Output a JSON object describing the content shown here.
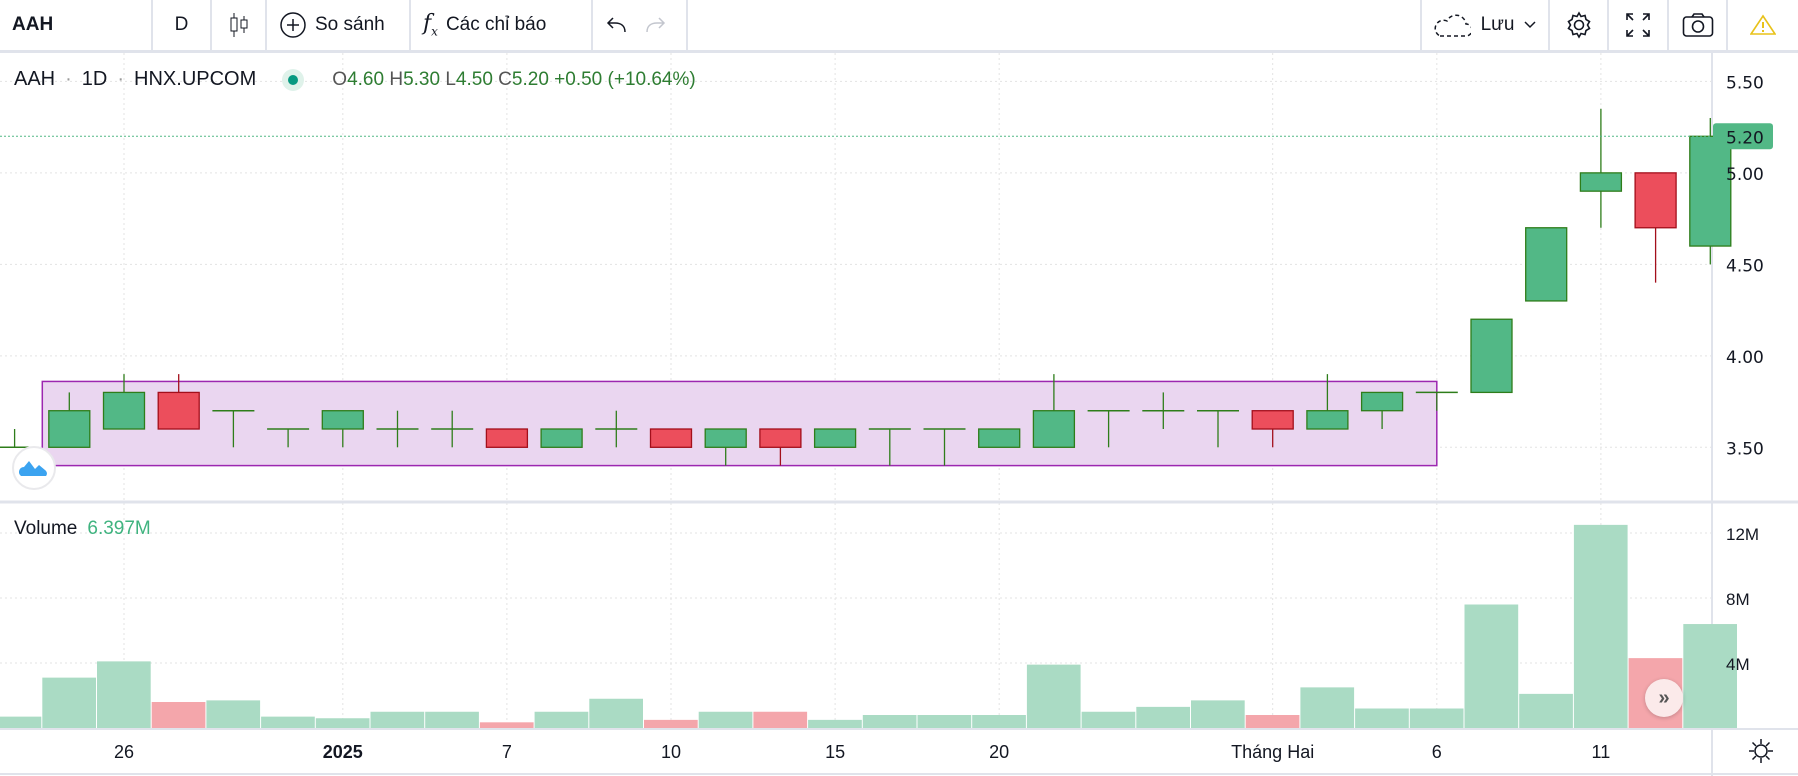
{
  "toolbar": {
    "symbol": "AAH",
    "interval": "D",
    "compare": "So sánh",
    "indicators": "Các chỉ báo",
    "save": "Lưu"
  },
  "legend": {
    "symbol": "AAH",
    "interval": "1D",
    "exchange": "HNX.UPCOM",
    "o_label": "O",
    "o": "4.60",
    "h_label": "H",
    "h": "5.30",
    "l_label": "L",
    "l": "4.50",
    "c_label": "C",
    "c": "5.20",
    "change": "+0.50 (+10.64%)"
  },
  "volume_legend": {
    "label": "Volume",
    "value": "6.397M"
  },
  "colors": {
    "up": "#52b886",
    "up_border": "#2e7d1a",
    "down": "#ec4e5c",
    "down_border": "#a30f1b",
    "vol_up": "#aadbc4",
    "vol_down": "#f4a6ab",
    "box_fill": "#ead6f0",
    "box_border": "#9c27b0",
    "last_tag": "#52b886"
  },
  "chart_data": {
    "type": "candlestick",
    "price_axis": {
      "ticks": [
        "5.50",
        "5.00",
        "4.50",
        "4.00",
        "3.50"
      ],
      "last_price": "5.20"
    },
    "volume_axis": {
      "ticks": [
        "12M",
        "8M",
        "4M"
      ]
    },
    "x_ticks": [
      {
        "index": 2,
        "label": "26"
      },
      {
        "index": 6,
        "label": "2025"
      },
      {
        "index": 9,
        "label": "7"
      },
      {
        "index": 12,
        "label": "10"
      },
      {
        "index": 15,
        "label": "15"
      },
      {
        "index": 18,
        "label": "20"
      },
      {
        "index": 23,
        "label": "Tháng Hai"
      },
      {
        "index": 26,
        "label": "6"
      },
      {
        "index": 29,
        "label": "11"
      }
    ],
    "candles": [
      [
        3.5,
        3.6,
        3.5,
        3.5
      ],
      [
        3.5,
        3.8,
        3.5,
        3.7
      ],
      [
        3.6,
        3.9,
        3.6,
        3.8
      ],
      [
        3.8,
        3.9,
        3.6,
        3.6
      ],
      [
        3.7,
        3.7,
        3.5,
        3.7
      ],
      [
        3.6,
        3.6,
        3.5,
        3.6
      ],
      [
        3.6,
        3.7,
        3.5,
        3.7
      ],
      [
        3.6,
        3.7,
        3.5,
        3.6
      ],
      [
        3.6,
        3.7,
        3.5,
        3.6
      ],
      [
        3.6,
        3.6,
        3.5,
        3.5
      ],
      [
        3.5,
        3.6,
        3.5,
        3.6
      ],
      [
        3.6,
        3.7,
        3.5,
        3.6
      ],
      [
        3.6,
        3.6,
        3.5,
        3.5
      ],
      [
        3.5,
        3.6,
        3.4,
        3.6
      ],
      [
        3.6,
        3.6,
        3.4,
        3.5
      ],
      [
        3.5,
        3.6,
        3.5,
        3.6
      ],
      [
        3.6,
        3.6,
        3.4,
        3.6
      ],
      [
        3.6,
        3.6,
        3.4,
        3.6
      ],
      [
        3.5,
        3.6,
        3.5,
        3.6
      ],
      [
        3.5,
        3.9,
        3.5,
        3.7
      ],
      [
        3.7,
        3.7,
        3.5,
        3.7
      ],
      [
        3.7,
        3.8,
        3.6,
        3.7
      ],
      [
        3.7,
        3.7,
        3.5,
        3.7
      ],
      [
        3.7,
        3.7,
        3.5,
        3.6
      ],
      [
        3.6,
        3.9,
        3.6,
        3.7
      ],
      [
        3.7,
        3.8,
        3.6,
        3.8
      ],
      [
        3.8,
        3.8,
        3.7,
        3.8
      ],
      [
        3.8,
        4.2,
        3.8,
        4.2
      ],
      [
        4.3,
        4.7,
        4.3,
        4.7
      ],
      [
        4.9,
        5.35,
        4.7,
        5.0
      ],
      [
        5.0,
        5.0,
        4.4,
        4.7
      ],
      [
        4.6,
        5.3,
        4.5,
        5.2
      ]
    ],
    "volumes_m": [
      0.7,
      3.1,
      4.1,
      1.6,
      1.7,
      0.7,
      0.6,
      1.0,
      1.0,
      0.35,
      1.0,
      1.8,
      0.5,
      1.0,
      1.0,
      0.5,
      0.8,
      0.8,
      0.8,
      3.9,
      1.0,
      1.3,
      1.7,
      0.8,
      2.5,
      1.2,
      1.2,
      7.6,
      2.1,
      12.5,
      4.3,
      6.397
    ],
    "highlight_box": {
      "from_index": 1,
      "to_index": 26,
      "low": 3.4,
      "high": 3.86
    }
  }
}
